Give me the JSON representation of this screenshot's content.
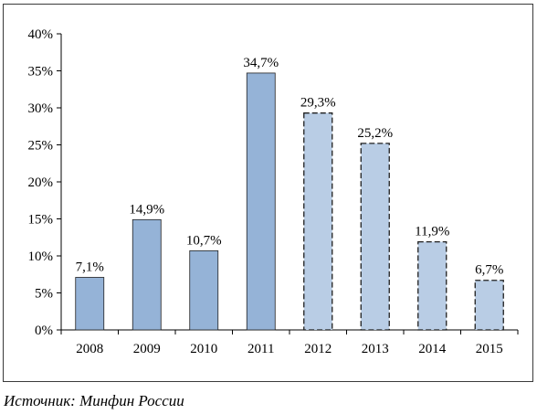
{
  "chart_data": {
    "type": "bar",
    "categories": [
      "2008",
      "2009",
      "2010",
      "2011",
      "2012",
      "2013",
      "2014",
      "2015"
    ],
    "values": [
      7.1,
      14.9,
      10.7,
      34.7,
      29.3,
      25.2,
      11.9,
      6.7
    ],
    "data_labels": [
      "7,1%",
      "14,9%",
      "10,7%",
      "34,7%",
      "29,3%",
      "25,2%",
      "11,9%",
      "6,7%"
    ],
    "bar_style": [
      "solid",
      "solid",
      "solid",
      "solid",
      "dashed",
      "dashed",
      "dashed",
      "dashed"
    ],
    "ylim": [
      0,
      40
    ],
    "y_ticks": [
      0,
      5,
      10,
      15,
      20,
      25,
      30,
      35,
      40
    ],
    "y_tick_labels": [
      "0%",
      "5%",
      "10%",
      "15%",
      "20%",
      "25%",
      "30%",
      "35%",
      "40%"
    ],
    "grid": false,
    "legend": "none",
    "colors": {
      "solid_fill": "#95b3d7",
      "dashed_fill": "#b9cde5",
      "bar_border": "#1f1f1f",
      "axis": "#000000"
    }
  },
  "source": "Источник: Минфин России"
}
